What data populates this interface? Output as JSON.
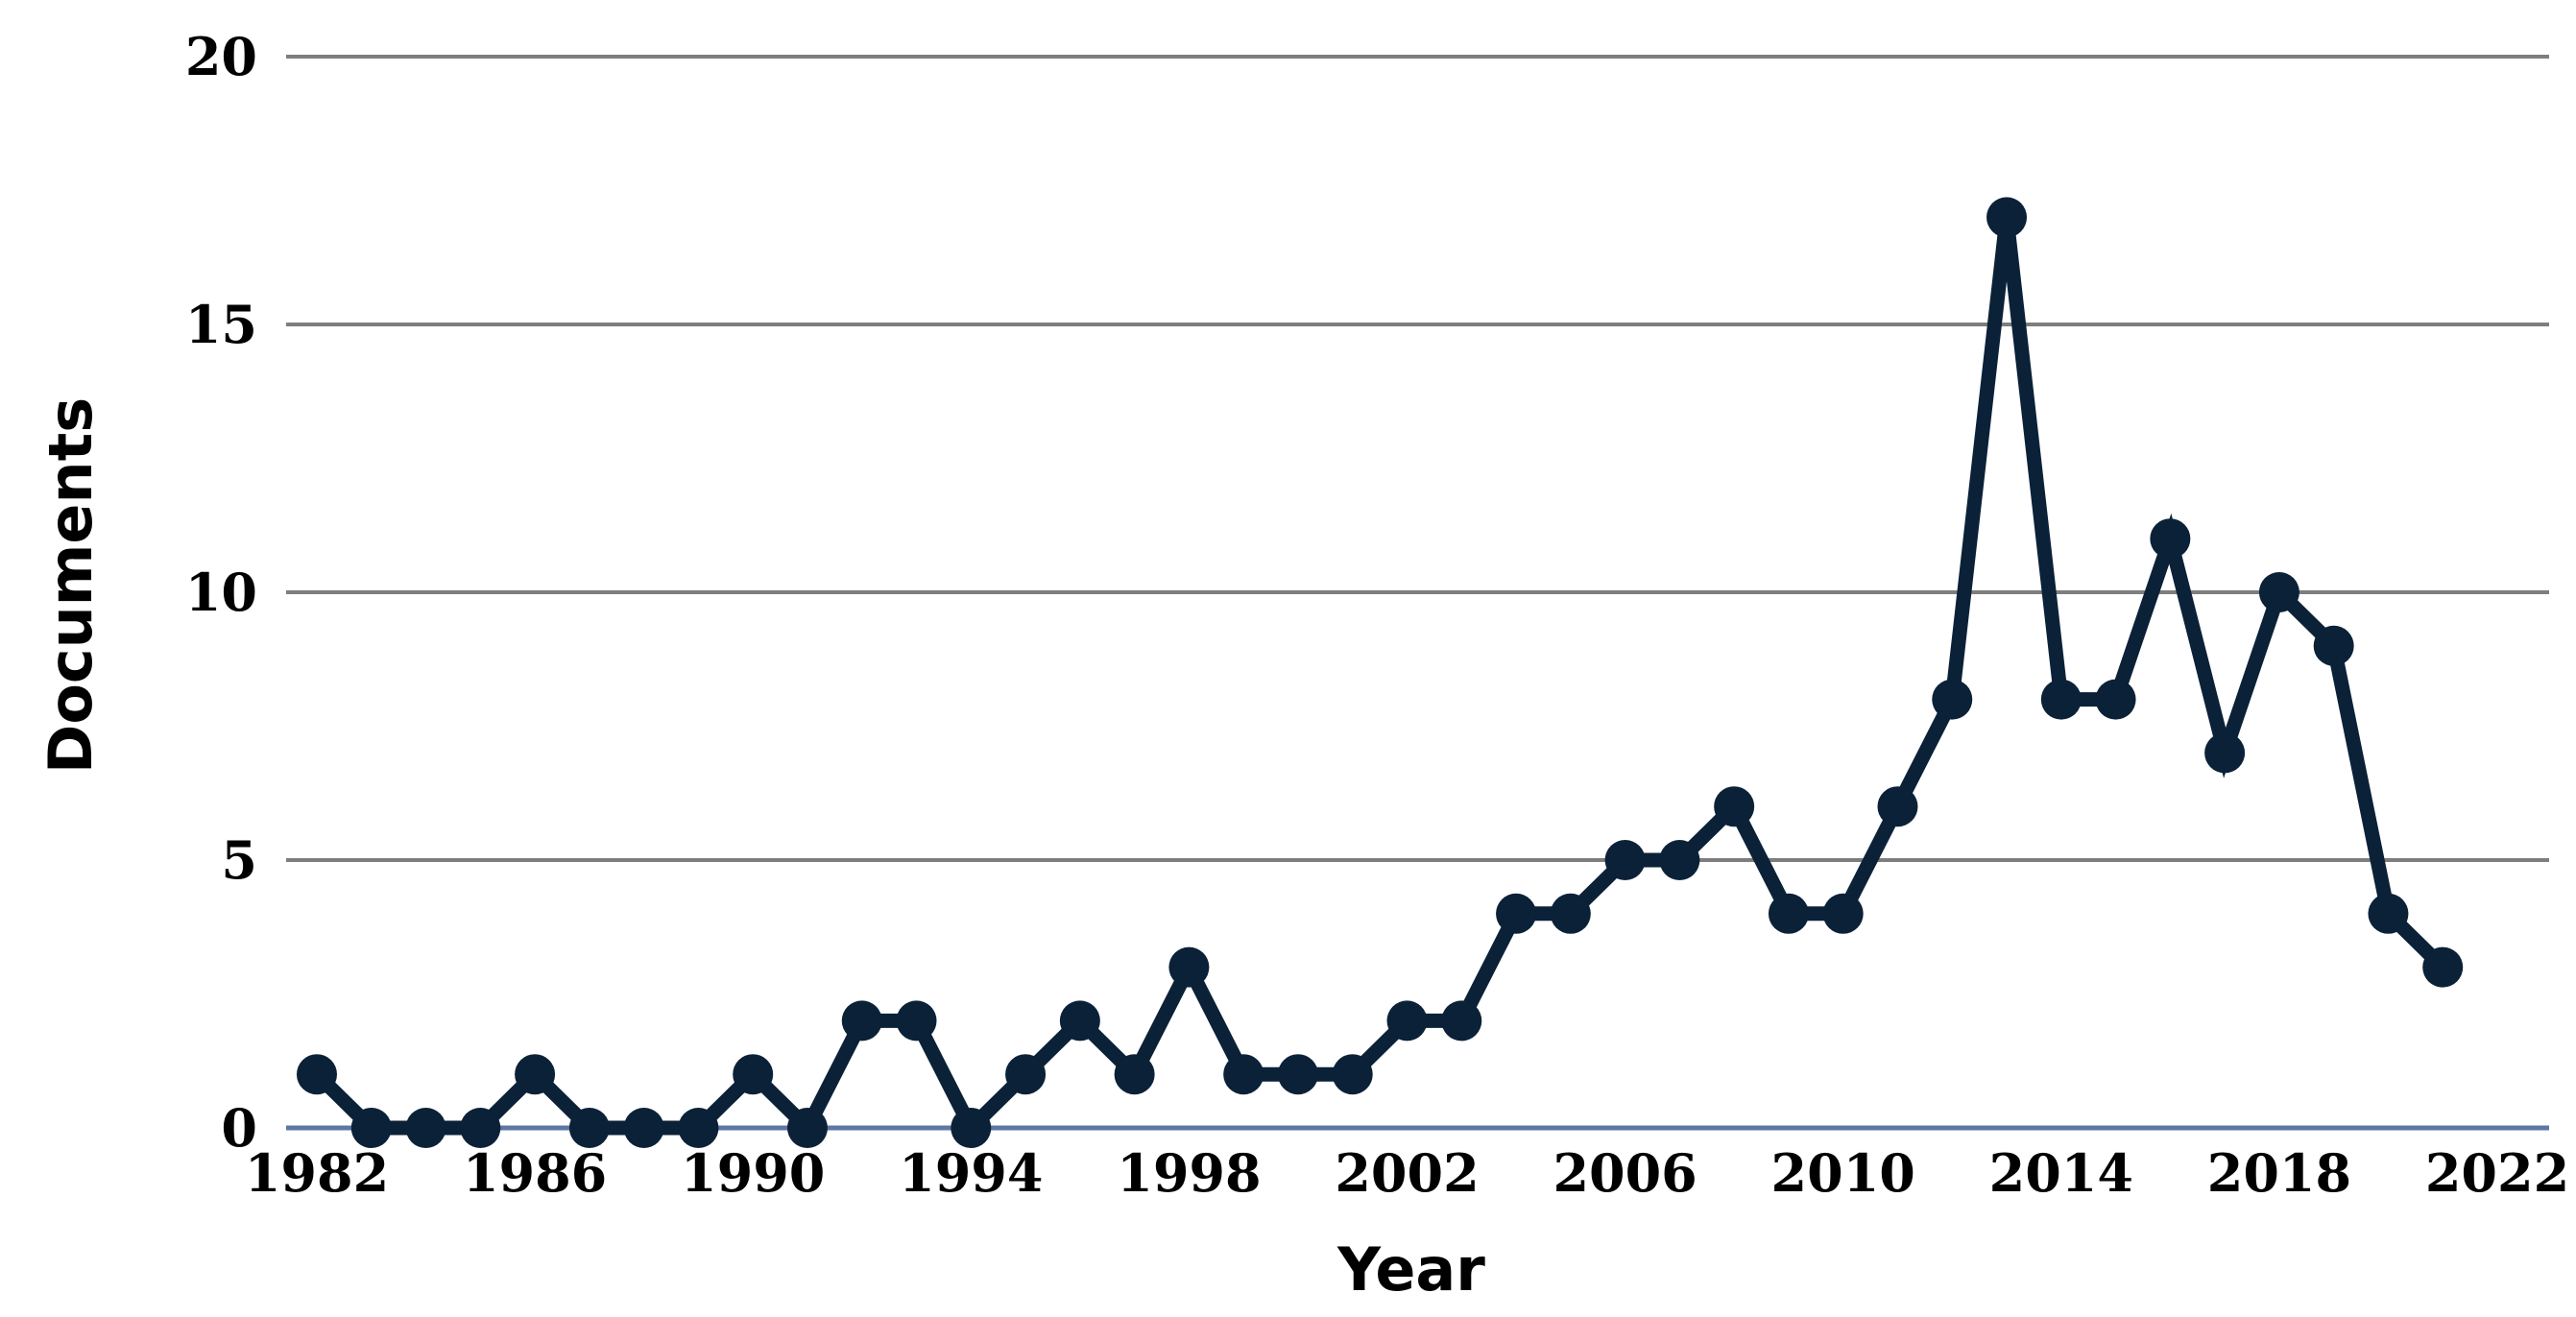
{
  "chart_data": {
    "type": "line",
    "title": "",
    "xlabel": "Year",
    "ylabel": "Documents",
    "series_name": "Documents",
    "x": [
      1982,
      1983,
      1984,
      1985,
      1986,
      1987,
      1988,
      1989,
      1990,
      1991,
      1992,
      1993,
      1994,
      1995,
      1996,
      1997,
      1998,
      1999,
      2000,
      2001,
      2002,
      2003,
      2004,
      2005,
      2006,
      2007,
      2008,
      2009,
      2010,
      2011,
      2012,
      2013,
      2014,
      2015,
      2016,
      2017,
      2018,
      2019,
      2020,
      2021
    ],
    "values": [
      1,
      0,
      0,
      0,
      1,
      0,
      0,
      0,
      1,
      0,
      2,
      2,
      0,
      1,
      2,
      1,
      3,
      1,
      1,
      1,
      2,
      2,
      4,
      4,
      5,
      5,
      6,
      4,
      4,
      6,
      8,
      17,
      8,
      8,
      11,
      7,
      10,
      9,
      4,
      3
    ],
    "ylim": [
      0,
      20
    ],
    "yticks": [
      0,
      5,
      10,
      15,
      20
    ],
    "xticks": [
      1982,
      1986,
      1990,
      1994,
      1998,
      2002,
      2006,
      2010,
      2014,
      2018,
      2022
    ],
    "grid": "horizontal",
    "legend_position": "none",
    "marker": "circle",
    "colors": {
      "line": "#0b2138",
      "marker": "#0b2138",
      "gridline": "#7e7e7e",
      "zero_axis": "#5e76a4",
      "text": "#000000",
      "background": "#ffffff"
    }
  }
}
